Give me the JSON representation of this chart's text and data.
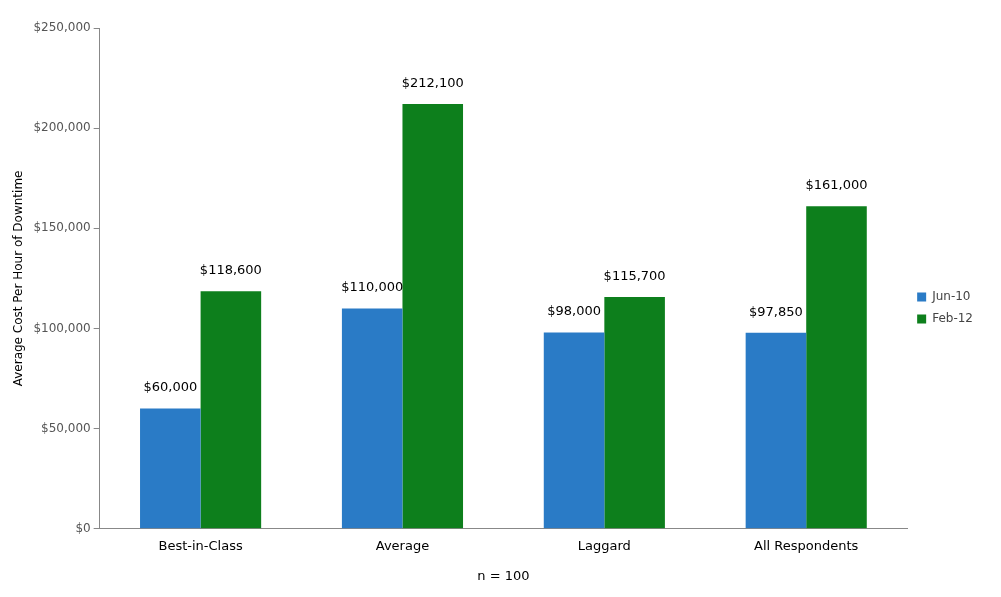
{
  "chart_data": {
    "type": "bar",
    "xlabel": "n = 100",
    "ylabel": "Average Cost Per Hour of Downtime",
    "categories": [
      "Best-in-Class",
      "Average",
      "Laggard",
      "All Respondents"
    ],
    "series": [
      {
        "name": "Jun-10",
        "color": "#2a7bc6",
        "values": [
          60000,
          110000,
          98000,
          97850
        ],
        "value_labels": [
          "$60,000",
          "$110,000",
          "$98,000",
          "$97,850"
        ]
      },
      {
        "name": "Feb-12",
        "color": "#0d7f1c",
        "values": [
          118600,
          212100,
          115700,
          161000
        ],
        "value_labels": [
          "$118,600",
          "$212,100",
          "$115,700",
          "$161,000"
        ]
      }
    ],
    "ylim": [
      0,
      250000
    ],
    "yticks": [
      {
        "value": 0,
        "label": "$0"
      },
      {
        "value": 50000,
        "label": "$50,000"
      },
      {
        "value": 100000,
        "label": "$100,000"
      },
      {
        "value": 150000,
        "label": "$150,000"
      },
      {
        "value": 200000,
        "label": "$200,000"
      },
      {
        "value": 250000,
        "label": "$250,000"
      }
    ],
    "legend": "right"
  }
}
